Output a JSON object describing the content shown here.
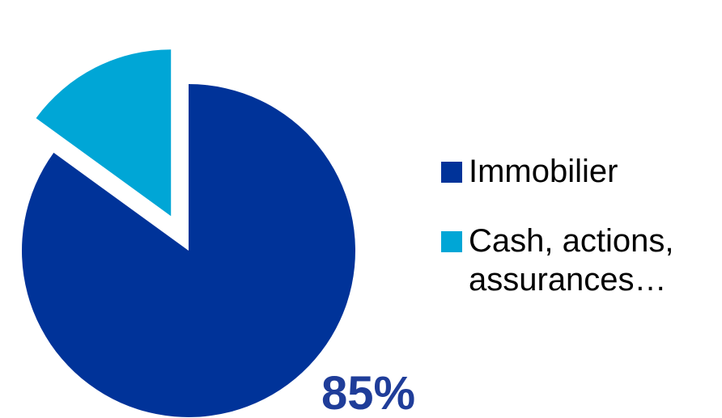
{
  "chart_data": {
    "type": "pie",
    "title": "",
    "slices": [
      {
        "label": "Immobilier",
        "value": 85,
        "display_label": "85%",
        "color": "#003399",
        "exploded": false
      },
      {
        "label": "Cash, actions, assurances…",
        "value": 15,
        "display_label": "",
        "color": "#00A6D6",
        "exploded": true
      }
    ],
    "legend": {
      "placement": "right",
      "entries": [
        {
          "label": "Immobilier",
          "color": "#003399"
        },
        {
          "label": "Cash, actions, assurances…",
          "color": "#00A6D6"
        }
      ]
    },
    "data_label_color": "#1F3D99"
  }
}
